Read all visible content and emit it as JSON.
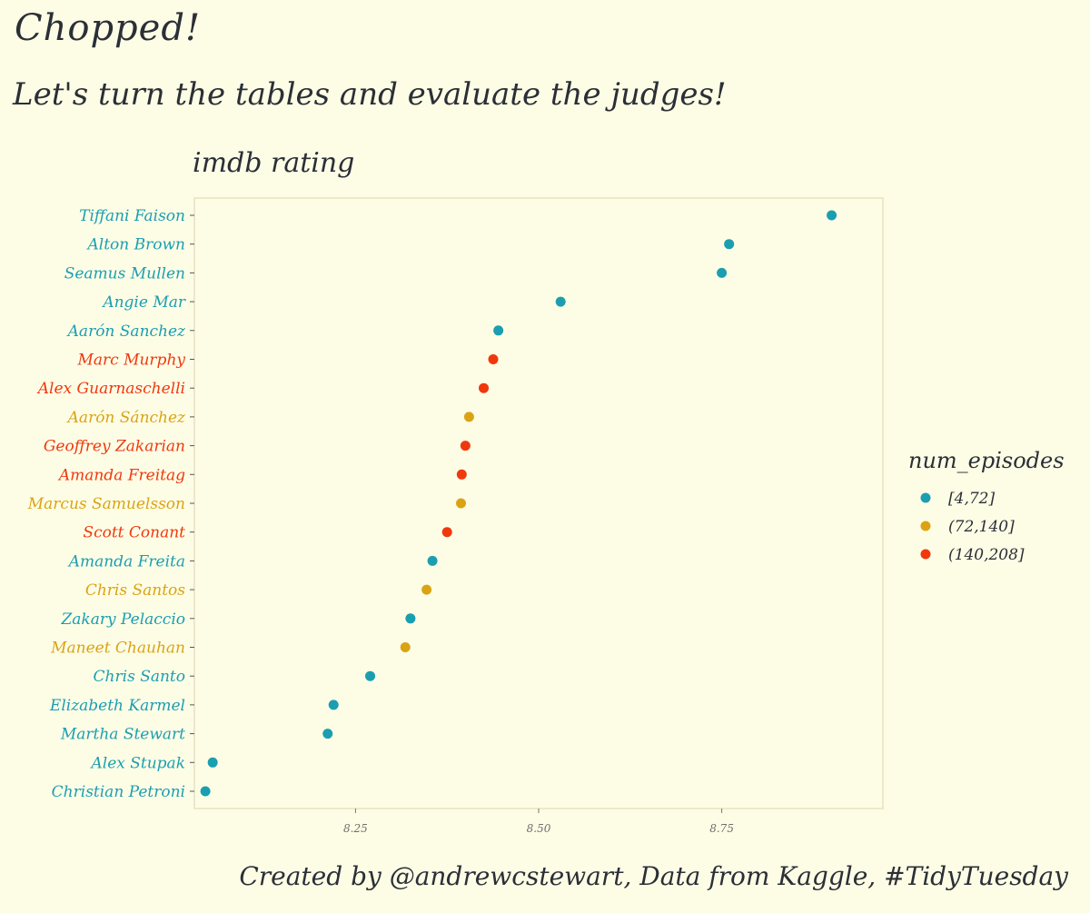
{
  "title": "Chopped!",
  "subtitle": "Let's turn the tables and evaluate the judges!",
  "caption": "Created by @andrewcstewart, Data from Kaggle, #TidyTuesday",
  "colors": {
    "background": "#fdfde6",
    "panel_border": "#e6e2c0",
    "low": "#1b9eb0",
    "mid": "#dba314",
    "high": "#f0380d",
    "text": "#2b2f36"
  },
  "chart_data": {
    "type": "scatter",
    "xlabel": "imdb rating",
    "xlim": [
      8.03,
      8.97
    ],
    "xticks": [
      8.25,
      8.5,
      8.75
    ],
    "xtick_labels": [
      "8.25",
      "8.50",
      "8.75"
    ],
    "grid": false,
    "legend": {
      "title": "num_episodes",
      "placement": "right",
      "entries": [
        {
          "label": "[4,72]",
          "group": "low"
        },
        {
          "label": "(72,140]",
          "group": "mid"
        },
        {
          "label": "(140,208]",
          "group": "high"
        }
      ]
    },
    "points": [
      {
        "name": "Tiffani Faison",
        "x": 8.9,
        "group": "low"
      },
      {
        "name": "Alton Brown",
        "x": 8.76,
        "group": "low"
      },
      {
        "name": "Seamus Mullen",
        "x": 8.75,
        "group": "low"
      },
      {
        "name": "Angie Mar",
        "x": 8.53,
        "group": "low"
      },
      {
        "name": "Aarón Sanchez",
        "x": 8.445,
        "group": "low"
      },
      {
        "name": "Marc Murphy",
        "x": 8.438,
        "group": "high"
      },
      {
        "name": "Alex Guarnaschelli",
        "x": 8.425,
        "group": "high"
      },
      {
        "name": "Aarón Sánchez",
        "x": 8.405,
        "group": "mid"
      },
      {
        "name": "Geoffrey Zakarian",
        "x": 8.4,
        "group": "high"
      },
      {
        "name": "Amanda Freitag",
        "x": 8.395,
        "group": "high"
      },
      {
        "name": "Marcus Samuelsson",
        "x": 8.394,
        "group": "mid"
      },
      {
        "name": "Scott Conant",
        "x": 8.375,
        "group": "high"
      },
      {
        "name": "Amanda Freita",
        "x": 8.355,
        "group": "low"
      },
      {
        "name": "Chris Santos",
        "x": 8.347,
        "group": "mid"
      },
      {
        "name": "Zakary Pelaccio",
        "x": 8.325,
        "group": "low"
      },
      {
        "name": "Maneet Chauhan",
        "x": 8.318,
        "group": "mid"
      },
      {
        "name": "Chris Santo",
        "x": 8.27,
        "group": "low"
      },
      {
        "name": "Elizabeth Karmel",
        "x": 8.22,
        "group": "low"
      },
      {
        "name": "Martha Stewart",
        "x": 8.212,
        "group": "low"
      },
      {
        "name": "Alex Stupak",
        "x": 8.055,
        "group": "low"
      },
      {
        "name": "Christian Petroni",
        "x": 8.045,
        "group": "low"
      }
    ]
  }
}
